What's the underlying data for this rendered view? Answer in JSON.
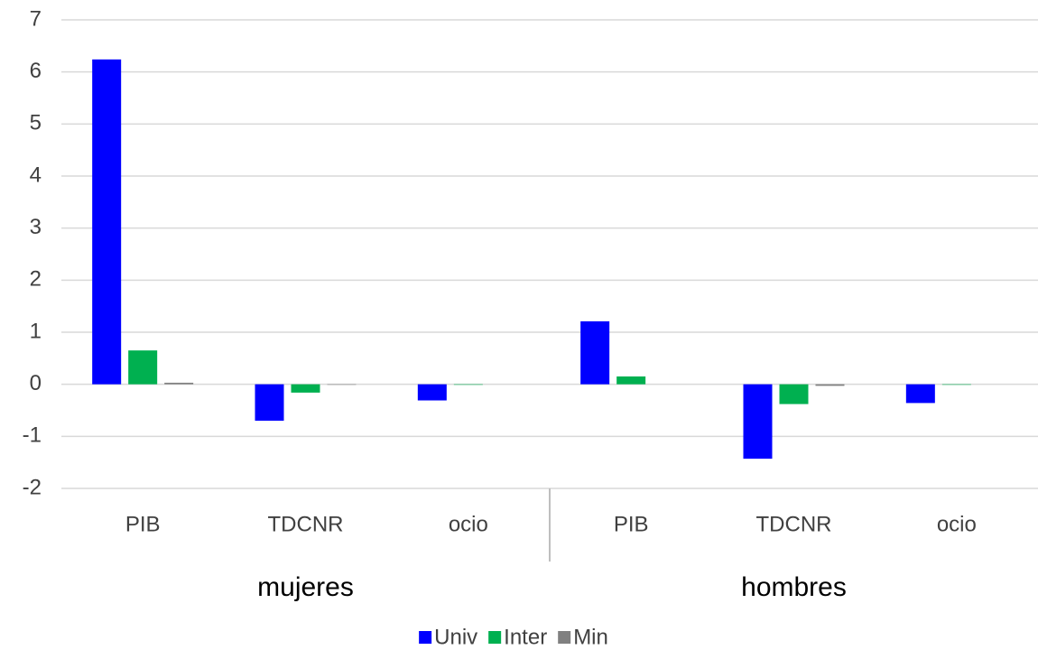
{
  "chart_data": {
    "type": "bar",
    "groups": [
      {
        "name": "mujeres",
        "categories": [
          "PIB",
          "TDCNR",
          "ocio"
        ]
      },
      {
        "name": "hombres",
        "categories": [
          "PIB",
          "TDCNR",
          "ocio"
        ]
      }
    ],
    "series": [
      {
        "name": "Univ",
        "color": "#0000ff",
        "values": [
          6.24,
          -0.7,
          -0.31,
          1.21,
          -1.43,
          -0.36
        ]
      },
      {
        "name": "Inter",
        "color": "#00b050",
        "values": [
          0.65,
          -0.16,
          -0.01,
          0.15,
          -0.38,
          -0.01
        ]
      },
      {
        "name": "Min",
        "color": "#808080",
        "values": [
          0.03,
          -0.01,
          0,
          0,
          -0.03,
          0
        ]
      }
    ],
    "ylim": [
      -2,
      7
    ],
    "yticks": [
      -2,
      -1,
      0,
      1,
      2,
      3,
      4,
      5,
      6,
      7
    ],
    "grid": true,
    "legend": "bottom"
  }
}
